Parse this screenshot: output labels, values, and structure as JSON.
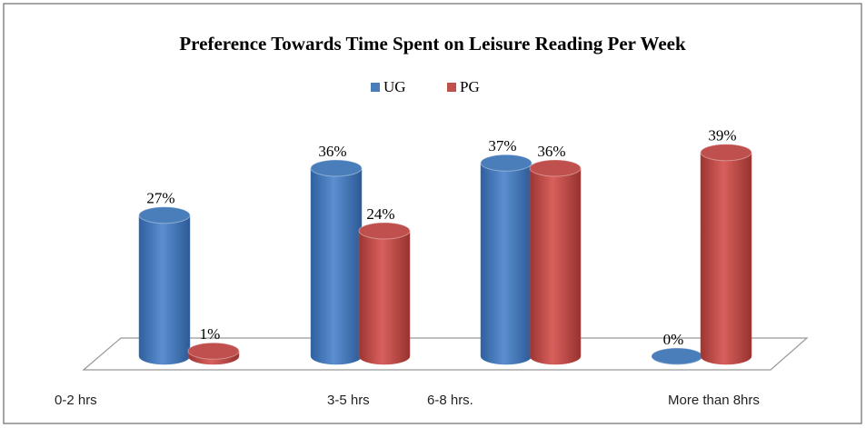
{
  "chart_data": {
    "type": "bar3d",
    "title": "Preference Towards Time Spent on Leisure Reading Per Week",
    "categories": [
      "0-2 hrs",
      "3-5 hrs",
      "6-8 hrs.",
      "More than 8hrs"
    ],
    "series": [
      {
        "name": "UG",
        "color": "#4a7ebb",
        "values": [
          27,
          36,
          37,
          0
        ],
        "value_labels": [
          "27%",
          "36%",
          "37%",
          "0%"
        ]
      },
      {
        "name": "PG",
        "color": "#c0504d",
        "values": [
          1,
          24,
          36,
          39
        ],
        "value_labels": [
          "1%",
          "24%",
          "36%",
          "39%"
        ]
      }
    ],
    "legend": "top"
  }
}
